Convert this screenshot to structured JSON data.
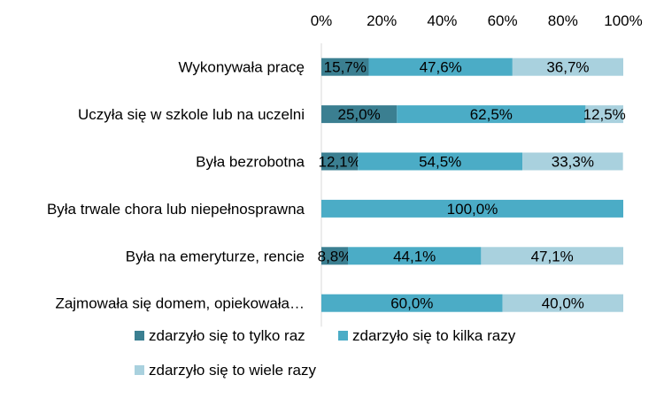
{
  "chart_data": {
    "type": "bar",
    "orientation": "horizontal",
    "stacked": "percent",
    "categories": [
      "Wykonywała pracę",
      "Uczyła się w szkole lub na uczelni",
      "Była bezrobotna",
      "Była trwale chora lub niepełnosprawna",
      "Była na emeryturze, rencie",
      "Zajmowała się domem, opiekowała…"
    ],
    "series": [
      {
        "name": "zdarzyło się to tylko raz",
        "color": "#3b7f91",
        "values": [
          15.7,
          25.0,
          12.1,
          0,
          8.8,
          0
        ],
        "labels": [
          "15,7%",
          "25,0%",
          "12,1%",
          "",
          "8,8%",
          ""
        ]
      },
      {
        "name": "zdarzyło się to kilka razy",
        "color": "#4bacc6",
        "values": [
          47.6,
          62.5,
          54.5,
          100,
          44.1,
          60.0
        ],
        "labels": [
          "47,6%",
          "62,5%",
          "54,5%",
          "100,0%",
          "44,1%",
          "60,0%"
        ]
      },
      {
        "name": "zdarzyło się to wiele razy",
        "color": "#a9d1de",
        "values": [
          36.7,
          12.5,
          33.3,
          0,
          47.1,
          40.0
        ],
        "labels": [
          "36,7%",
          "12,5%",
          "33,3%",
          "",
          "47,1%",
          "40,0%"
        ]
      }
    ],
    "xlim": [
      0,
      100
    ],
    "xticks": [
      "0%",
      "20%",
      "40%",
      "60%",
      "80%",
      "100%"
    ],
    "axis_position": "top",
    "grid": false,
    "legend_position": "bottom"
  }
}
